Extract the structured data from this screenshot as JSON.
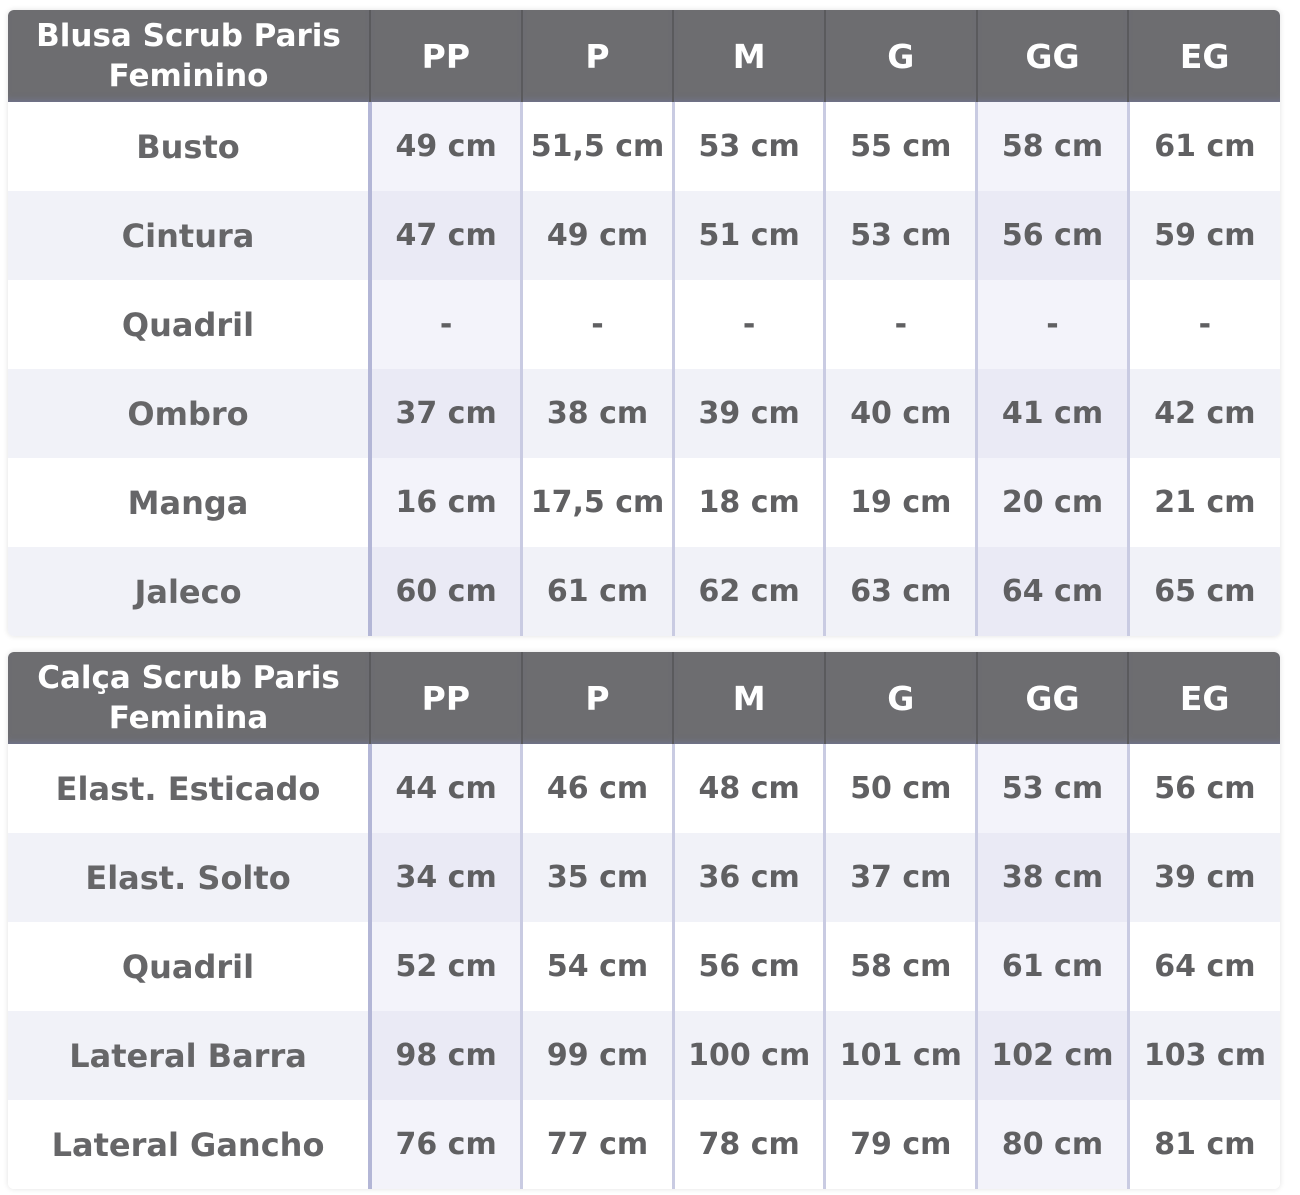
{
  "tables": [
    {
      "title_line1": "Blusa Scrub Paris",
      "title_line2": "Feminino",
      "sizes": [
        "PP",
        "P",
        "M",
        "G",
        "GG",
        "EG"
      ],
      "rows": [
        {
          "label": "Busto",
          "values": [
            "49 cm",
            "51,5 cm",
            "53 cm",
            "55 cm",
            "58 cm",
            "61 cm"
          ]
        },
        {
          "label": "Cintura",
          "values": [
            "47 cm",
            "49 cm",
            "51 cm",
            "53 cm",
            "56 cm",
            "59 cm"
          ]
        },
        {
          "label": "Quadril",
          "values": [
            "-",
            "-",
            "-",
            "-",
            "-",
            "-"
          ]
        },
        {
          "label": "Ombro",
          "values": [
            "37 cm",
            "38 cm",
            "39 cm",
            "40 cm",
            "41 cm",
            "42 cm"
          ]
        },
        {
          "label": "Manga",
          "values": [
            "16 cm",
            "17,5 cm",
            "18 cm",
            "19 cm",
            "20 cm",
            "21 cm"
          ]
        },
        {
          "label": "Jaleco",
          "values": [
            "60 cm",
            "61 cm",
            "62 cm",
            "63 cm",
            "64 cm",
            "65 cm"
          ]
        }
      ]
    },
    {
      "title_line1": "Calça Scrub Paris",
      "title_line2": "Feminina",
      "sizes": [
        "PP",
        "P",
        "M",
        "G",
        "GG",
        "EG"
      ],
      "rows": [
        {
          "label": "Elast. Esticado",
          "values": [
            "44 cm",
            "46 cm",
            "48 cm",
            "50 cm",
            "53 cm",
            "56 cm"
          ]
        },
        {
          "label": "Elast. Solto",
          "values": [
            "34 cm",
            "35 cm",
            "36 cm",
            "37 cm",
            "38 cm",
            "39 cm"
          ]
        },
        {
          "label": "Quadril",
          "values": [
            "52 cm",
            "54 cm",
            "56 cm",
            "58 cm",
            "61 cm",
            "64 cm"
          ]
        },
        {
          "label": "Lateral Barra",
          "values": [
            "98 cm",
            "99 cm",
            "100 cm",
            "101 cm",
            "102 cm",
            "103 cm"
          ]
        },
        {
          "label": "Lateral Gancho",
          "values": [
            "76 cm",
            "77 cm",
            "78 cm",
            "79 cm",
            "80 cm",
            "81 cm"
          ]
        }
      ]
    }
  ],
  "colors": {
    "header_bg": "#6d6d70",
    "header_text": "#ffffff",
    "body_text": "#606062",
    "stripe": "#f1f2f8"
  }
}
